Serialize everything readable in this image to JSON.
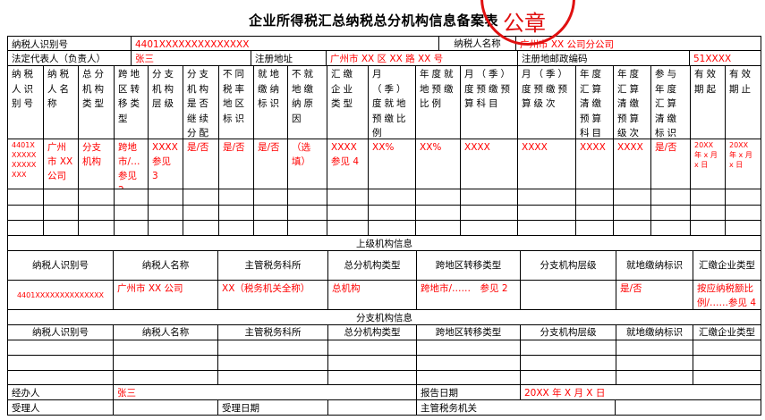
{
  "title": "企业所得税汇总纳税总分机构信息备案表",
  "stamp": "公章",
  "colors": {
    "value_text": "#ff0000",
    "stamp": "#e01010"
  },
  "basic": {
    "taxpayer_id_label": "纳税人识别号",
    "taxpayer_id": "4401XXXXXXXXXXXXXX",
    "taxpayer_name_label": "纳税人名称",
    "taxpayer_name": "广州市 XX 公司分公司",
    "legal_rep_label": "法定代表人（负责人）",
    "legal_rep": "张三",
    "reg_address_label": "注册地址",
    "reg_address": "广州市 XX 区 XX 路 XX 号",
    "postal_label": "注册地邮政编码",
    "postal_code": "51XXXX"
  },
  "branch_table": {
    "headers": [
      "纳税人识别号",
      "纳税人名称",
      "总分机构类型",
      "跨地区转移类型",
      "分支机构层级",
      "分支机构是否继续分配",
      "不同税率地区标识",
      "就地缴纳标识",
      "不就地缴纳原因",
      "汇缴企业类型",
      "月（季）度就地预缴比例",
      "年度就地预缴比例",
      "月（季）度预缴预算科目",
      "月（季）度预缴预算级次",
      "年度汇算清缴预算科目",
      "年度汇算清缴预算级次",
      "参与年度汇算清缴标识",
      "有效期起",
      "有效期止"
    ],
    "row": [
      "4401XXXXXXXXXXXXXX",
      "广州市 XX 公司",
      "分支机构",
      "跨地市/… 参见 2",
      "XXXX 参见 3",
      "是/否",
      "是/否",
      "是/否",
      "（选填）",
      "XXXX 参见 4",
      "XX%",
      "XX%",
      "XXXX",
      "XXXX",
      "XXXX",
      "XXXX",
      "是/否",
      "20XX 年 x 月 x 日",
      "20XX 年 x 月 x 日"
    ]
  },
  "superior": {
    "section_title": "上级机构信息",
    "headers": [
      "纳税人识别号",
      "纳税人名称",
      "主管税务科所",
      "总分机构类型",
      "跨地区转移类型",
      "分支机构层级",
      "就地缴纳标识",
      "汇缴企业类型"
    ],
    "row": [
      "4401XXXXXXXXXXXXXX",
      "广州市 XX 公司",
      "XX（税务机关全称）",
      "总机构",
      "跨地市/……　参见 2",
      "",
      "是/否",
      "按应纳税额比例/……参见 4"
    ]
  },
  "branch_info": {
    "section_title": "分支机构信息",
    "headers": [
      "纳税人识别号",
      "纳税人名称",
      "主管税务科所",
      "总分机构类型",
      "跨地区转移类型",
      "分支机构层级",
      "就地缴纳标识",
      "汇缴企业类型"
    ]
  },
  "footer": {
    "handler_label": "经办人",
    "handler": "张三",
    "report_date_label": "报告日期",
    "report_date": "20XX 年 X 月 X 日",
    "receiver_label": "受理人",
    "receive_date_label": "受理日期",
    "tax_authority_label": "主管税务机关"
  }
}
